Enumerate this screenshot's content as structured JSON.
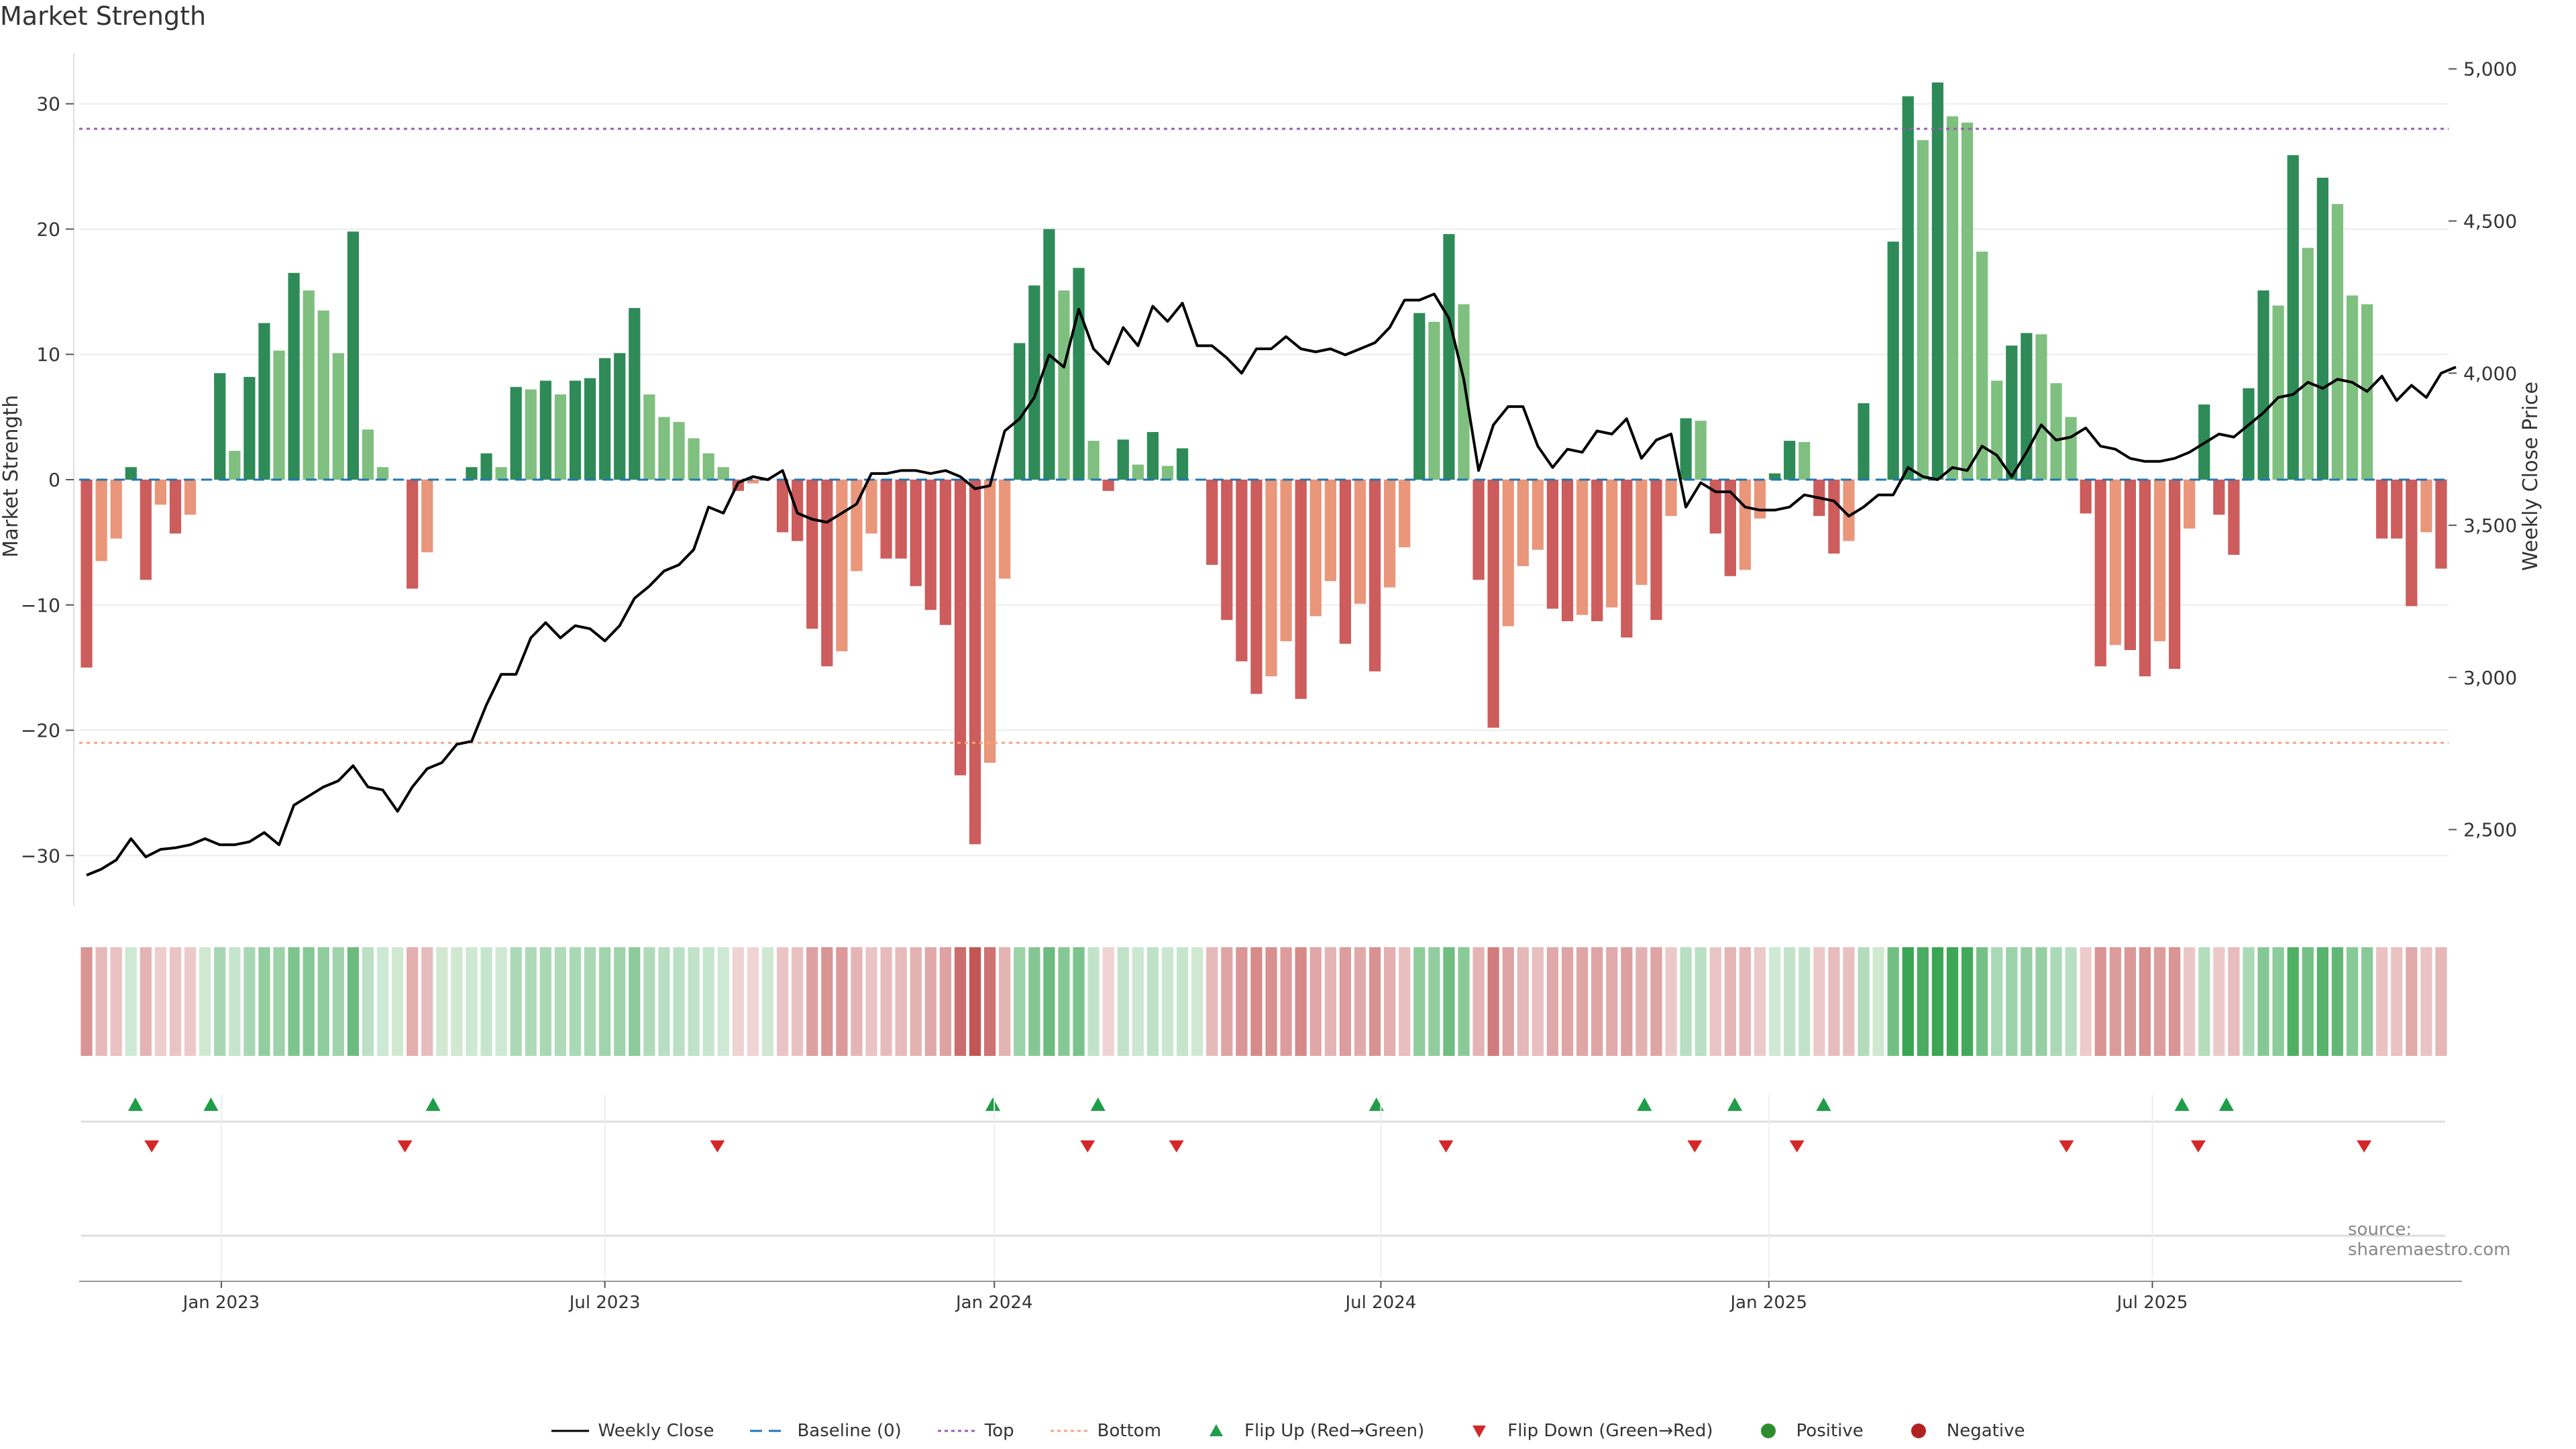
{
  "title": "Market Strength",
  "source": "source: sharemaestro.com",
  "colors": {
    "pos_strong": "#2e8b57",
    "pos_weak": "#7fbf7f",
    "neg_strong": "#cd5c5c",
    "neg_weak": "#e9967a",
    "price_line": "#000000",
    "baseline": "#1f77b4",
    "top": "#9b59b6",
    "bottom": "#f4a582",
    "flip_up": "#1e9e48",
    "flip_down": "#d62728",
    "grid": "#ececec"
  },
  "legend": [
    {
      "key": "weekly_close",
      "label": "Weekly Close"
    },
    {
      "key": "baseline",
      "label": "Baseline (0)"
    },
    {
      "key": "top",
      "label": "Top"
    },
    {
      "key": "bottom",
      "label": "Bottom"
    },
    {
      "key": "flip_up",
      "label": "Flip Up (Red→Green)"
    },
    {
      "key": "flip_down",
      "label": "Flip Down (Green→Red)"
    },
    {
      "key": "positive",
      "label": "Positive"
    },
    {
      "key": "negative",
      "label": "Negative"
    }
  ],
  "chart_data": {
    "type": "bar",
    "title": "Market Strength",
    "ylabel": "Market Strength",
    "y2label": "Weekly Close Price",
    "ylim": [
      -34,
      34
    ],
    "y2lim": [
      2250,
      5050
    ],
    "yticks": [
      30,
      20,
      10,
      0,
      -10,
      -20,
      -30
    ],
    "ytick_labels": [
      "30",
      "20",
      "10",
      "0",
      "−10",
      "−20",
      "−30"
    ],
    "y2ticks": [
      5000,
      4500,
      4000,
      3500,
      3000,
      2500
    ],
    "y2tick_labels": [
      "5,000",
      "4,500",
      "4,000",
      "3,500",
      "3,000",
      "2,500"
    ],
    "x_start_week": 0,
    "x_end_week": 157,
    "xticks": [
      {
        "label": "Jan 2023",
        "week": 9.1
      },
      {
        "label": "Jul 2023",
        "week": 35.0
      },
      {
        "label": "Jan 2024",
        "week": 61.3
      },
      {
        "label": "Jul 2024",
        "week": 87.4
      },
      {
        "label": "Jan 2025",
        "week": 113.6
      },
      {
        "label": "Jul 2025",
        "week": 139.5
      }
    ],
    "top_level": 28,
    "bottom_level": -21,
    "baseline": 0,
    "strength": [
      -15,
      -6.5,
      -4.7,
      1,
      -8,
      -2,
      -4.3,
      -2.8,
      0,
      8.5,
      2.3,
      8.2,
      12.5,
      10.3,
      16.5,
      15.1,
      13.5,
      10.1,
      19.8,
      4,
      1,
      0,
      -8.7,
      -5.8,
      0,
      0,
      1,
      2.1,
      1,
      7.4,
      7.2,
      7.9,
      6.8,
      7.9,
      8.1,
      9.7,
      10.1,
      13.7,
      6.8,
      5,
      4.6,
      3.3,
      2.1,
      1,
      -0.9,
      -0.3,
      0,
      -4.2,
      -4.9,
      -11.9,
      -14.9,
      -13.7,
      -7.3,
      -4.3,
      -6.3,
      -6.3,
      -8.5,
      -10.4,
      -11.6,
      -23.6,
      -29.1,
      -22.6,
      -7.9,
      10.9,
      15.5,
      20,
      15.1,
      16.9,
      3.1,
      -0.9,
      3.2,
      1.2,
      3.8,
      1.1,
      2.5,
      0,
      -6.8,
      -11.2,
      -14.5,
      -17.1,
      -15.7,
      -12.9,
      -17.5,
      -10.9,
      -8.1,
      -13.1,
      -9.9,
      -15.3,
      -8.6,
      -5.4,
      13.3,
      12.6,
      19.6,
      14,
      -8,
      -19.8,
      -11.7,
      -6.9,
      -5.6,
      -10.3,
      -11.3,
      -10.8,
      -11.3,
      -10.2,
      -12.6,
      -8.4,
      -11.2,
      -2.9,
      4.9,
      4.7,
      -4.3,
      -7.7,
      -7.2,
      -3.1,
      0.5,
      3.1,
      3,
      -2.9,
      -5.9,
      -4.9,
      6.1,
      0,
      19,
      30.6,
      27.1,
      31.7,
      29,
      28.5,
      18.2,
      7.9,
      10.7,
      11.7,
      11.6,
      7.7,
      5,
      -2.7,
      -14.9,
      -13.2,
      -13.6,
      -15.7,
      -12.9,
      -15.1,
      -3.9,
      6,
      -2.8,
      -6,
      7.3,
      15.1,
      13.9,
      25.9,
      18.5,
      24.1,
      22,
      14.7,
      14,
      -4.7,
      -4.7,
      -10.1,
      -4.2,
      -7.1
    ],
    "weekly_close": [
      2350,
      2370,
      2400,
      2470,
      2410,
      2435,
      2440,
      2450,
      2470,
      2450,
      2450,
      2460,
      2490,
      2450,
      2580,
      2610,
      2640,
      2660,
      2710,
      2640,
      2630,
      2560,
      2640,
      2700,
      2720,
      2780,
      2790,
      2910,
      3010,
      3010,
      3130,
      3180,
      3130,
      3170,
      3160,
      3120,
      3170,
      3260,
      3300,
      3350,
      3370,
      3420,
      3560,
      3540,
      3640,
      3660,
      3650,
      3680,
      3540,
      3520,
      3510,
      3540,
      3570,
      3670,
      3670,
      3680,
      3680,
      3670,
      3680,
      3660,
      3620,
      3630,
      3810,
      3850,
      3920,
      4060,
      4020,
      4210,
      4080,
      4030,
      4150,
      4090,
      4220,
      4170,
      4230,
      4090,
      4090,
      4050,
      4000,
      4080,
      4080,
      4120,
      4080,
      4070,
      4080,
      4060,
      4080,
      4100,
      4150,
      4240,
      4240,
      4260,
      4180,
      3980,
      3680,
      3830,
      3890,
      3890,
      3760,
      3690,
      3750,
      3740,
      3810,
      3800,
      3850,
      3720,
      3780,
      3800,
      3560,
      3640,
      3610,
      3610,
      3560,
      3550,
      3550,
      3560,
      3600,
      3590,
      3580,
      3530,
      3560,
      3600,
      3600,
      3690,
      3660,
      3650,
      3690,
      3680,
      3760,
      3730,
      3660,
      3740,
      3830,
      3780,
      3790,
      3820,
      3760,
      3750,
      3720,
      3710,
      3710,
      3720,
      3740,
      3770,
      3800,
      3790,
      3830,
      3870,
      3920,
      3930,
      3970,
      3950,
      3980,
      3970,
      3940,
      3990,
      3910,
      3960,
      3920,
      4000,
      4020
    ]
  },
  "heat_strip": [
    -15,
    -6.5,
    -4.7,
    1,
    -8,
    -2,
    -4.3,
    -2.8,
    0,
    8.5,
    2.3,
    8.2,
    12.5,
    10.3,
    16.5,
    15.1,
    13.5,
    10.1,
    19.8,
    4,
    1,
    0,
    -8.7,
    -5.8,
    0,
    0,
    1,
    2.1,
    1,
    7.4,
    7.2,
    7.9,
    6.8,
    7.9,
    8.1,
    9.7,
    10.1,
    13.7,
    6.8,
    5,
    4.6,
    3.3,
    2.1,
    1,
    -0.9,
    -0.3,
    0,
    -4.2,
    -4.9,
    -11.9,
    -14.9,
    -13.7,
    -7.3,
    -4.3,
    -6.3,
    -6.3,
    -8.5,
    -10.4,
    -11.6,
    -23.6,
    -29.1,
    -22.6,
    -7.9,
    10.9,
    15.5,
    20,
    15.1,
    16.9,
    3.1,
    -0.9,
    3.2,
    1.2,
    3.8,
    1.1,
    2.5,
    0,
    -6.8,
    -11.2,
    -14.5,
    -17.1,
    -15.7,
    -12.9,
    -17.5,
    -10.9,
    -8.1,
    -13.1,
    -9.9,
    -15.3,
    -8.6,
    -5.4,
    13.3,
    12.6,
    19.6,
    14,
    -8,
    -19.8,
    -11.7,
    -6.9,
    -5.6,
    -10.3,
    -11.3,
    -10.8,
    -11.3,
    -10.2,
    -12.6,
    -8.4,
    -11.2,
    -2.9,
    4.9,
    4.7,
    -4.3,
    -7.7,
    -7.2,
    -3.1,
    0.5,
    3.1,
    3,
    -2.9,
    -5.9,
    -4.9,
    6.1,
    0,
    19,
    30.6,
    27.1,
    31.7,
    29,
    28.5,
    18.2,
    7.9,
    10.7,
    11.7,
    11.6,
    7.7,
    5,
    -2.7,
    -14.9,
    -13.2,
    -13.6,
    -15.7,
    -12.9,
    -15.1,
    -3.9,
    6,
    -2.8,
    -6,
    7.3,
    15.1,
    13.9,
    25.9,
    18.5,
    24.1,
    22,
    14.7,
    14,
    -4.7,
    -4.7,
    -10.1,
    -4.2,
    -7.1
  ],
  "flip_up_weeks": [
    3.3,
    8.4,
    23.4,
    61.2,
    68.3,
    87.1,
    105.2,
    111.3,
    117.3,
    141.5,
    144.5
  ],
  "flip_down_weeks": [
    4.4,
    21.5,
    42.6,
    67.6,
    73.6,
    91.8,
    108.6,
    115.5,
    133.7,
    142.6,
    153.8
  ]
}
